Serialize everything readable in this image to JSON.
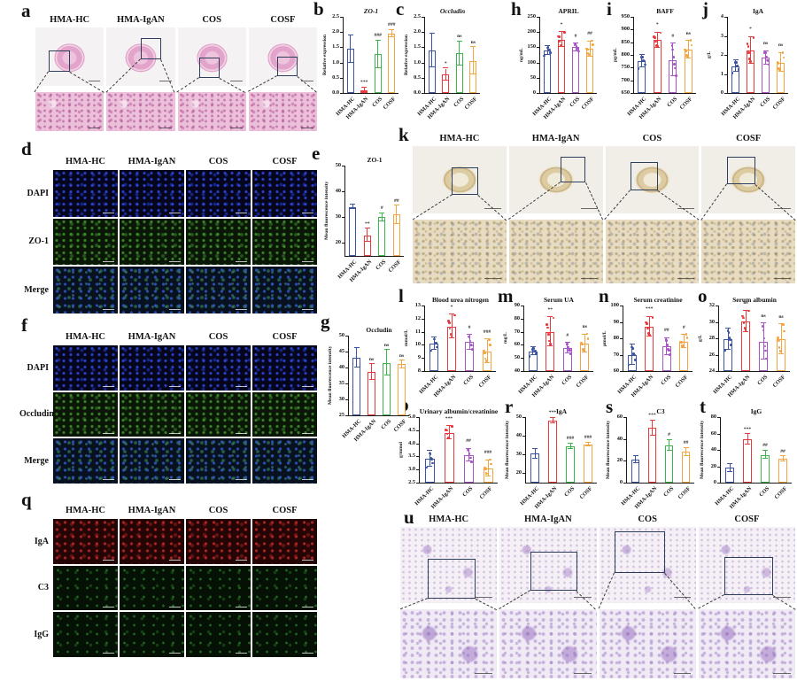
{
  "groups": [
    "HMA-HC",
    "HMA-IgAN",
    "COS",
    "COSF"
  ],
  "panel_labels": {
    "a": "a",
    "b": "b",
    "c": "c",
    "d": "d",
    "e": "e",
    "f": "f",
    "g": "g",
    "h": "h",
    "i": "i",
    "j": "j",
    "k": "k",
    "l": "l",
    "m": "m",
    "n": "n",
    "o": "o",
    "p": "p",
    "q": "q",
    "r": "r",
    "s": "s",
    "t": "t",
    "u": "u"
  },
  "colors": {
    "hc": "#3a53a4",
    "igan": "#e8393d",
    "cos_green": "#3cb54b",
    "cos_purple": "#a855c8",
    "cosf": "#f5a53f",
    "axis": "#1a1a1a"
  },
  "micro_panels": [
    {
      "id": "a",
      "top_stain": "he-top",
      "bottom_stain": "he-bottom"
    },
    {
      "id": "d",
      "row_labels": [
        "DAPI",
        "ZO-1",
        "Merge"
      ],
      "stains": [
        "if-blue",
        "if-green",
        "if-merge"
      ]
    },
    {
      "id": "f",
      "row_labels": [
        "DAPI",
        "Occludin",
        "Merge"
      ],
      "stains": [
        "if-blue",
        "if-green",
        "if-merge"
      ]
    },
    {
      "id": "q",
      "row_labels": [
        "IgA",
        "C3",
        "IgG"
      ],
      "stains": [
        "if-red",
        "if-dgreen",
        "if-dgreen"
      ]
    },
    {
      "id": "k",
      "top_stain": "ihc-top",
      "bottom_stain": "ihc-bottom"
    },
    {
      "id": "u",
      "top_stain": "pas-top",
      "bottom_stain": "pas-bottom"
    }
  ],
  "chart_data": [
    {
      "id": "b",
      "type": "bar",
      "title": "ZO-1",
      "italic": true,
      "ylabel": "Relative expression",
      "ymin": 0,
      "ymax": 2.5,
      "yticks": [
        0,
        0.5,
        1,
        1.5,
        2,
        2.5
      ],
      "ytick_labels": [
        "0.0",
        "0.5",
        "1.0",
        "1.5",
        "2.0",
        "2.5"
      ],
      "categories": [
        "HMA-HC",
        "HMA-IgAN",
        "COS",
        "COSF"
      ],
      "values": [
        1.45,
        0.1,
        1.27,
        1.95
      ],
      "errors": [
        0.45,
        0.08,
        0.45,
        0.12
      ],
      "annotations": [
        "",
        "***",
        "###",
        "###"
      ],
      "scheme": "green",
      "dots": false
    },
    {
      "id": "c",
      "type": "bar",
      "title": "Occludin",
      "italic": true,
      "ylabel": "Relative expression",
      "ymin": 0,
      "ymax": 2.5,
      "yticks": [
        0,
        0.5,
        1,
        1.5,
        2,
        2.5
      ],
      "ytick_labels": [
        "0.0",
        "0.5",
        "1.0",
        "1.5",
        "2.0",
        "2.5"
      ],
      "categories": [
        "HMA-HC",
        "HMA-IgAN",
        "COS",
        "COSF"
      ],
      "values": [
        1.4,
        0.6,
        1.3,
        1.05
      ],
      "errors": [
        0.55,
        0.2,
        0.4,
        0.45
      ],
      "annotations": [
        "",
        "*",
        "ns",
        "ns"
      ],
      "scheme": "green",
      "dots": false
    },
    {
      "id": "h",
      "type": "bar",
      "title": "APRIL",
      "ylabel": "ng/mL",
      "ymin": 0,
      "ymax": 250,
      "yticks": [
        0,
        50,
        100,
        150,
        200,
        250
      ],
      "ytick_labels": [
        "0",
        "50",
        "100",
        "150",
        "200",
        "250"
      ],
      "categories": [
        "HMA-HC",
        "HMA-IgAN",
        "COS",
        "COSF"
      ],
      "values": [
        140,
        175,
        150,
        145
      ],
      "errors": [
        15,
        25,
        12,
        25
      ],
      "annotations": [
        "",
        "*",
        "#",
        "##"
      ],
      "scheme": "purple",
      "dots": true
    },
    {
      "id": "i",
      "type": "bar",
      "title": "BAFF",
      "ylabel": "pg/mL",
      "ymin": 650,
      "ymax": 950,
      "yticks": [
        650,
        700,
        750,
        800,
        850,
        900,
        950
      ],
      "ytick_labels": [
        "650",
        "700",
        "750",
        "800",
        "850",
        "900",
        "950"
      ],
      "categories": [
        "HMA-HC",
        "HMA-IgAN",
        "COS",
        "COSF"
      ],
      "values": [
        775,
        858,
        780,
        820
      ],
      "errors": [
        25,
        30,
        65,
        35
      ],
      "annotations": [
        "",
        "*",
        "#",
        "ns"
      ],
      "scheme": "purple",
      "dots": true
    },
    {
      "id": "j",
      "type": "bar",
      "title": "IgA",
      "ylabel": "g/L",
      "ymin": 0,
      "ymax": 4,
      "yticks": [
        0,
        1,
        2,
        3,
        4
      ],
      "ytick_labels": [
        "0",
        "1",
        "2",
        "3",
        "4"
      ],
      "categories": [
        "HMA-HC",
        "HMA-IgAN",
        "COS",
        "COSF"
      ],
      "values": [
        1.4,
        2.25,
        1.85,
        1.6
      ],
      "errors": [
        0.3,
        0.7,
        0.35,
        0.5
      ],
      "annotations": [
        "",
        "*",
        "ns",
        "ns"
      ],
      "scheme": "purple",
      "dots": true
    },
    {
      "id": "e",
      "type": "bar",
      "title": "ZO-1",
      "ylabel": "Mean fluorescence intensity",
      "ymin": 15,
      "ymax": 50,
      "yticks": [
        20,
        30,
        40,
        50
      ],
      "ytick_labels": [
        "20",
        "30",
        "40",
        "50"
      ],
      "categories": [
        "HMA-HC",
        "HMA-IgAN",
        "COS",
        "COSF"
      ],
      "values": [
        34,
        23,
        30,
        31
      ],
      "errors": [
        0.8,
        2.5,
        1.5,
        3.5
      ],
      "annotations": [
        "",
        "**",
        "#",
        "##"
      ],
      "scheme": "green",
      "dots": false
    },
    {
      "id": "g",
      "type": "bar",
      "title": "Occludin",
      "ylabel": "Mean fluorescence intensity",
      "ymin": 25,
      "ymax": 50,
      "yticks": [
        25,
        30,
        35,
        40,
        45,
        50
      ],
      "ytick_labels": [
        "25",
        "30",
        "35",
        "40",
        "45",
        "50"
      ],
      "categories": [
        "HMA-HC",
        "HMA-IgAN",
        "COS",
        "COSF"
      ],
      "values": [
        43,
        38.5,
        41.5,
        41
      ],
      "errors": [
        3,
        2.5,
        4,
        1.2
      ],
      "annotations": [
        "",
        "ns",
        "ns",
        "ns"
      ],
      "scheme": "green",
      "dots": false
    },
    {
      "id": "l",
      "type": "bar",
      "title": "Blood urea nitrogen",
      "ylabel": "mmol/L",
      "ymin": 8,
      "ymax": 13,
      "yticks": [
        8,
        9,
        10,
        11,
        12,
        13
      ],
      "ytick_labels": [
        "8",
        "9",
        "10",
        "11",
        "12",
        "13"
      ],
      "categories": [
        "HMA-HC",
        "HMA-IgAN",
        "COS",
        "COSF"
      ],
      "values": [
        10.1,
        11.4,
        10.2,
        9.5
      ],
      "errors": [
        0.5,
        0.9,
        0.55,
        0.9
      ],
      "annotations": [
        "",
        "*",
        "#",
        "###"
      ],
      "scheme": "purple",
      "dots": true
    },
    {
      "id": "m",
      "type": "bar",
      "title": "Serum UA",
      "ylabel": "mg/L",
      "ymin": 40,
      "ymax": 90,
      "yticks": [
        40,
        50,
        60,
        70,
        80,
        90
      ],
      "ytick_labels": [
        "40",
        "50",
        "60",
        "70",
        "80",
        "90"
      ],
      "categories": [
        "HMA-HC",
        "HMA-IgAN",
        "COS",
        "COSF"
      ],
      "values": [
        55,
        70,
        57.5,
        61
      ],
      "errors": [
        3,
        11,
        4,
        7
      ],
      "annotations": [
        "",
        "**",
        "#",
        "ns"
      ],
      "scheme": "purple",
      "dots": true
    },
    {
      "id": "n",
      "type": "bar",
      "title": "Serum creatinine",
      "ylabel": "μmol/L",
      "ymin": 60,
      "ymax": 100,
      "yticks": [
        60,
        70,
        80,
        90,
        100
      ],
      "ytick_labels": [
        "60",
        "70",
        "80",
        "90",
        "100"
      ],
      "categories": [
        "HMA-HC",
        "HMA-IgAN",
        "COS",
        "COSF"
      ],
      "values": [
        70,
        87,
        75,
        78
      ],
      "errors": [
        6,
        6,
        5,
        4
      ],
      "annotations": [
        "",
        "***",
        "##",
        "#"
      ],
      "scheme": "purple",
      "dots": true
    },
    {
      "id": "o",
      "type": "bar",
      "title": "Serum albumin",
      "ylabel": "g/L",
      "ymin": 24,
      "ymax": 32,
      "yticks": [
        24,
        26,
        28,
        30,
        32
      ],
      "ytick_labels": [
        "24",
        "26",
        "28",
        "30",
        "32"
      ],
      "categories": [
        "HMA-HC",
        "HMA-IgAN",
        "COS",
        "COSF"
      ],
      "values": [
        27.9,
        30.1,
        27.6,
        27.9
      ],
      "errors": [
        1.3,
        1.3,
        2.2,
        1.8
      ],
      "annotations": [
        "",
        "ns",
        "ns",
        "ns"
      ],
      "scheme": "purple",
      "dots": true
    },
    {
      "id": "p",
      "type": "bar",
      "title": "Urinary albumin/creatinine",
      "ylabel": "g/mmol",
      "ymin": 2.5,
      "ymax": 5,
      "yticks": [
        2.5,
        3,
        3.5,
        4,
        4.5,
        5
      ],
      "ytick_labels": [
        "2.5",
        "3.0",
        "3.5",
        "4.0",
        "4.5",
        "5.0"
      ],
      "categories": [
        "HMA-HC",
        "HMA-IgAN",
        "COS",
        "COSF"
      ],
      "values": [
        3.4,
        4.4,
        3.55,
        3.05
      ],
      "errors": [
        0.3,
        0.25,
        0.25,
        0.3
      ],
      "annotations": [
        "",
        "***",
        "##",
        "###"
      ],
      "scheme": "purple",
      "dots": true
    },
    {
      "id": "r",
      "type": "bar",
      "title": "IgA",
      "ylabel": "Mean fluorescence intensity",
      "ymin": 15,
      "ymax": 50,
      "yticks": [
        20,
        30,
        40,
        50
      ],
      "ytick_labels": [
        "20",
        "30",
        "40",
        "50"
      ],
      "categories": [
        "HMA-HC",
        "HMA-IgAN",
        "COS",
        "COSF"
      ],
      "values": [
        30.5,
        48,
        34.5,
        35.5
      ],
      "errors": [
        2.5,
        1.5,
        1.5,
        1
      ],
      "annotations": [
        "",
        "***",
        "###",
        "###"
      ],
      "scheme": "green",
      "dots": false
    },
    {
      "id": "s",
      "type": "bar",
      "title": "C3",
      "ylabel": "Mean fluorescence intensity",
      "ymin": 0,
      "ymax": 60,
      "yticks": [
        0,
        20,
        40,
        60
      ],
      "ytick_labels": [
        "0",
        "20",
        "40",
        "60"
      ],
      "categories": [
        "HMA-HC",
        "HMA-IgAN",
        "COS",
        "COSF"
      ],
      "values": [
        21,
        50,
        34,
        28
      ],
      "errors": [
        3,
        7,
        5,
        4
      ],
      "annotations": [
        "",
        "***",
        "#",
        "##"
      ],
      "scheme": "green",
      "dots": false
    },
    {
      "id": "t",
      "type": "bar",
      "title": "IgG",
      "ylabel": "Mean fluorescence intensity",
      "ymin": 0,
      "ymax": 80,
      "yticks": [
        0,
        20,
        40,
        60,
        80
      ],
      "ytick_labels": [
        "0",
        "20",
        "40",
        "60",
        "80"
      ],
      "categories": [
        "HMA-HC",
        "HMA-IgAN",
        "COS",
        "COSF"
      ],
      "values": [
        18,
        53,
        34,
        29
      ],
      "errors": [
        5,
        6,
        5,
        3
      ],
      "annotations": [
        "",
        "***",
        "##",
        "##"
      ],
      "scheme": "green",
      "dots": false
    }
  ]
}
